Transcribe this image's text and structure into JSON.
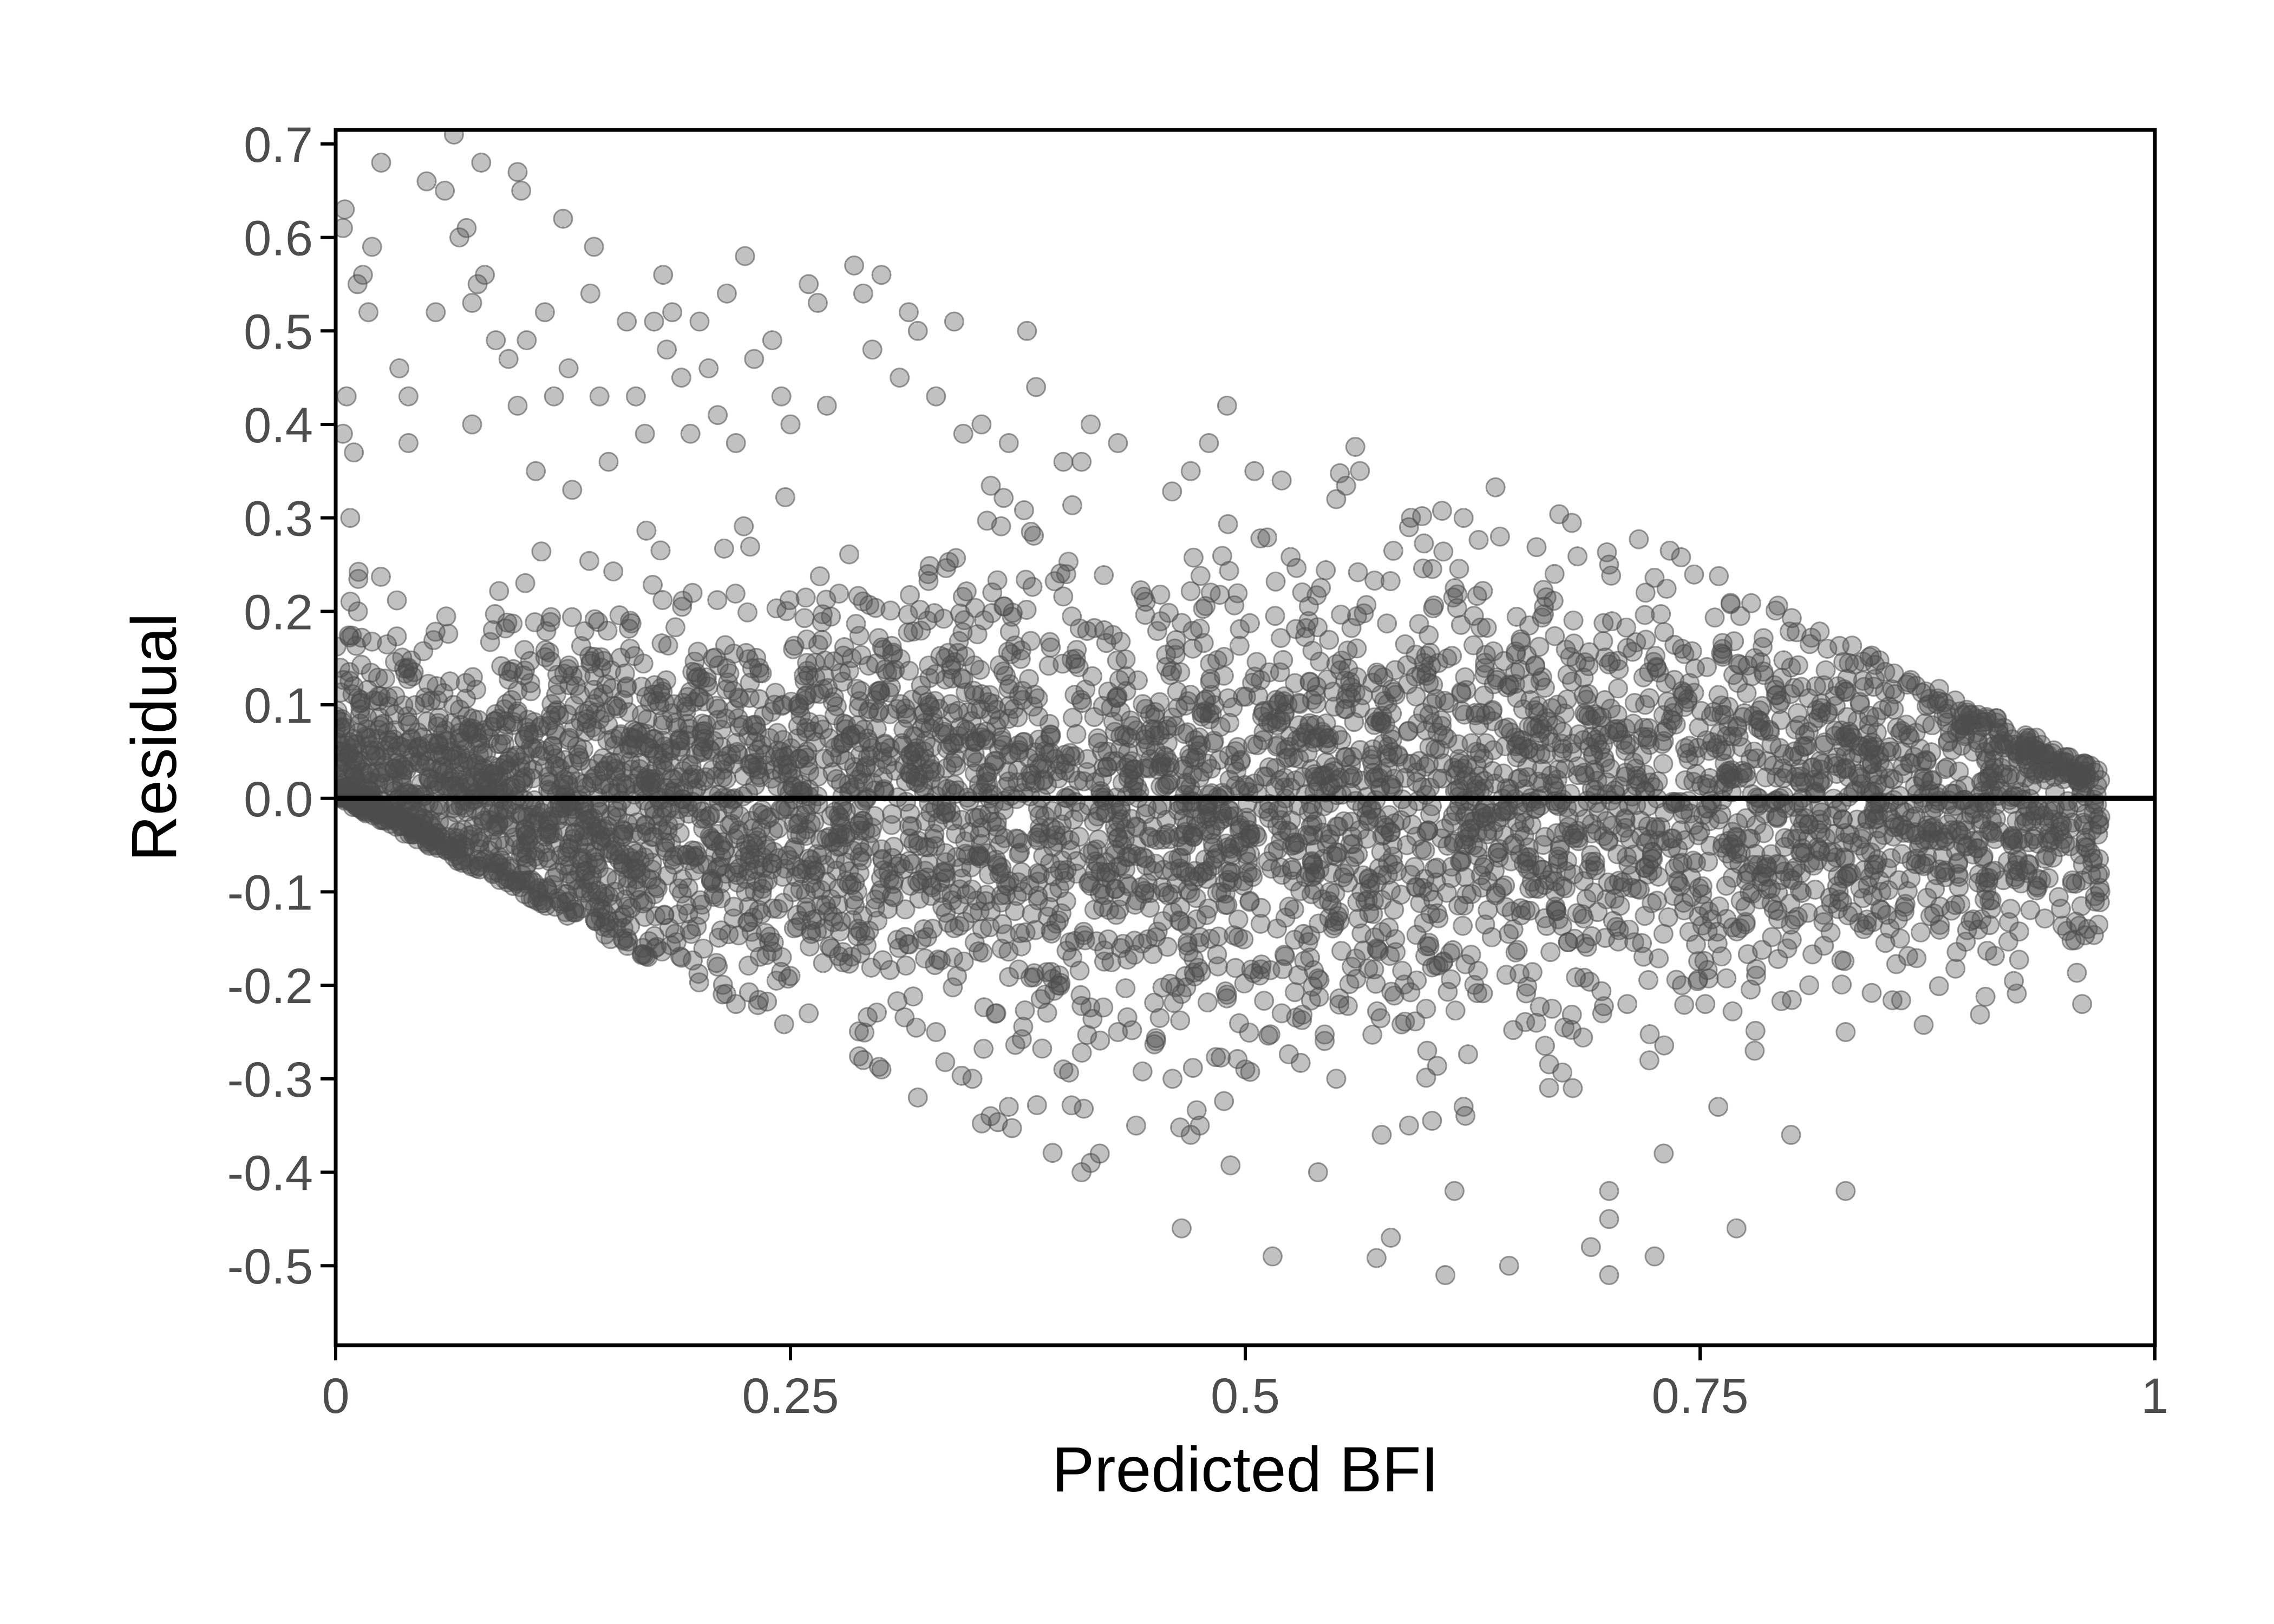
{
  "chart_data": {
    "type": "scatter",
    "title": "",
    "xlabel": "Predicted BFI",
    "ylabel": "Residual",
    "xlim": [
      0,
      1
    ],
    "ylim": [
      -0.585,
      0.715
    ],
    "x_ticks": [
      0,
      0.25,
      0.5,
      0.75,
      1
    ],
    "x_tick_labels": [
      "0",
      "0.25",
      "0.5",
      "0.75",
      "1"
    ],
    "y_ticks": [
      0.7,
      0.6,
      0.5,
      0.4,
      0.3,
      0.2,
      0.1,
      0.0,
      -0.1,
      -0.2,
      -0.3,
      -0.4,
      -0.5
    ],
    "y_tick_labels": [
      "0.7",
      "0.6",
      "0.5",
      "0.4",
      "0.3",
      "0.2",
      "0.1",
      "0.0",
      "-0.1",
      "-0.2",
      "-0.3",
      "-0.4",
      "-0.5"
    ],
    "grid": false,
    "legend": "none",
    "reference_line": {
      "y": 0,
      "color": "#000000"
    },
    "point_color": "#4d4d4d",
    "point_opacity": 0.35,
    "series": [
      {
        "points": [
          [
            0.005,
            0.63
          ],
          [
            0.004,
            0.61
          ],
          [
            0.006,
            0.43
          ],
          [
            0.004,
            0.39
          ],
          [
            0.01,
            0.37
          ],
          [
            0.008,
            0.3
          ],
          [
            0.012,
            0.55
          ],
          [
            0.015,
            0.56
          ],
          [
            0.02,
            0.59
          ],
          [
            0.018,
            0.52
          ],
          [
            0.025,
            0.68
          ],
          [
            0.035,
            0.46
          ],
          [
            0.04,
            0.43
          ],
          [
            0.04,
            0.38
          ],
          [
            0.05,
            0.66
          ],
          [
            0.055,
            0.52
          ],
          [
            0.06,
            0.65
          ],
          [
            0.065,
            0.71
          ],
          [
            0.068,
            0.6
          ],
          [
            0.072,
            0.61
          ],
          [
            0.075,
            0.53
          ],
          [
            0.078,
            0.55
          ],
          [
            0.08,
            0.68
          ],
          [
            0.082,
            0.56
          ],
          [
            0.075,
            0.4
          ],
          [
            0.088,
            0.49
          ],
          [
            0.095,
            0.47
          ],
          [
            0.1,
            0.67
          ],
          [
            0.102,
            0.65
          ],
          [
            0.1,
            0.42
          ],
          [
            0.105,
            0.49
          ],
          [
            0.11,
            0.35
          ],
          [
            0.115,
            0.52
          ],
          [
            0.12,
            0.43
          ],
          [
            0.125,
            0.62
          ],
          [
            0.128,
            0.46
          ],
          [
            0.13,
            0.33
          ],
          [
            0.14,
            0.54
          ],
          [
            0.142,
            0.59
          ],
          [
            0.145,
            0.43
          ],
          [
            0.15,
            0.36
          ],
          [
            0.16,
            0.51
          ],
          [
            0.165,
            0.43
          ],
          [
            0.17,
            0.39
          ],
          [
            0.175,
            0.51
          ],
          [
            0.18,
            0.56
          ],
          [
            0.182,
            0.48
          ],
          [
            0.185,
            0.52
          ],
          [
            0.19,
            0.45
          ],
          [
            0.195,
            0.39
          ],
          [
            0.2,
            0.51
          ],
          [
            0.205,
            0.46
          ],
          [
            0.21,
            0.41
          ],
          [
            0.215,
            0.54
          ],
          [
            0.22,
            0.38
          ],
          [
            0.225,
            0.58
          ],
          [
            0.23,
            0.47
          ],
          [
            0.24,
            0.49
          ],
          [
            0.245,
            0.43
          ],
          [
            0.25,
            0.4
          ],
          [
            0.26,
            0.55
          ],
          [
            0.265,
            0.53
          ],
          [
            0.27,
            0.42
          ],
          [
            0.285,
            0.57
          ],
          [
            0.29,
            0.54
          ],
          [
            0.295,
            0.48
          ],
          [
            0.3,
            0.56
          ],
          [
            0.31,
            0.45
          ],
          [
            0.315,
            0.52
          ],
          [
            0.32,
            0.5
          ],
          [
            0.33,
            0.43
          ],
          [
            0.34,
            0.51
          ],
          [
            0.345,
            0.39
          ],
          [
            0.355,
            0.4
          ],
          [
            0.37,
            0.38
          ],
          [
            0.38,
            0.5
          ],
          [
            0.385,
            0.44
          ],
          [
            0.4,
            0.36
          ],
          [
            0.41,
            0.36
          ],
          [
            0.415,
            0.4
          ],
          [
            0.43,
            0.38
          ],
          [
            0.47,
            0.35
          ],
          [
            0.48,
            0.38
          ],
          [
            0.49,
            0.42
          ],
          [
            0.505,
            0.35
          ],
          [
            0.52,
            0.34
          ],
          [
            0.55,
            0.32
          ],
          [
            0.59,
            0.29
          ],
          [
            0.62,
            0.3
          ],
          [
            0.64,
            0.28
          ],
          [
            0.67,
            0.24
          ],
          [
            0.7,
            0.25
          ],
          [
            0.72,
            0.22
          ],
          [
            0.74,
            0.16
          ],
          [
            0.78,
            0.15
          ],
          [
            0.8,
            0.14
          ],
          [
            0.82,
            0.09
          ],
          [
            0.86,
            0.07
          ],
          [
            0.9,
            0.05
          ],
          [
            0.92,
            0.04
          ],
          [
            0.94,
            0.02
          ],
          [
            0.96,
            0.01
          ],
          [
            0.97,
            -0.02
          ],
          [
            0.97,
            -0.1
          ],
          [
            0.96,
            -0.22
          ],
          [
            0.93,
            -0.08
          ],
          [
            0.9,
            -0.06
          ],
          [
            0.86,
            -0.15
          ],
          [
            0.84,
            -0.14
          ],
          [
            0.83,
            -0.25
          ],
          [
            0.83,
            -0.42
          ],
          [
            0.81,
            -0.2
          ],
          [
            0.8,
            -0.36
          ],
          [
            0.78,
            -0.27
          ],
          [
            0.77,
            -0.46
          ],
          [
            0.76,
            -0.33
          ],
          [
            0.74,
            -0.2
          ],
          [
            0.73,
            -0.38
          ],
          [
            0.725,
            -0.49
          ],
          [
            0.71,
            -0.22
          ],
          [
            0.7,
            -0.42
          ],
          [
            0.7,
            -0.45
          ],
          [
            0.7,
            -0.51
          ],
          [
            0.69,
            -0.48
          ],
          [
            0.68,
            -0.31
          ],
          [
            0.66,
            -0.24
          ],
          [
            0.645,
            -0.5
          ],
          [
            0.62,
            -0.33
          ],
          [
            0.615,
            -0.42
          ],
          [
            0.61,
            -0.51
          ],
          [
            0.6,
            -0.27
          ],
          [
            0.59,
            -0.35
          ],
          [
            0.58,
            -0.47
          ],
          [
            0.575,
            -0.36
          ],
          [
            0.55,
            -0.3
          ],
          [
            0.54,
            -0.4
          ],
          [
            0.52,
            -0.23
          ],
          [
            0.515,
            -0.49
          ],
          [
            0.5,
            -0.29
          ],
          [
            0.49,
            -0.21
          ],
          [
            0.475,
            -0.35
          ],
          [
            0.47,
            -0.36
          ],
          [
            0.465,
            -0.46
          ],
          [
            0.46,
            -0.3
          ],
          [
            0.44,
            -0.35
          ],
          [
            0.43,
            -0.25
          ],
          [
            0.42,
            -0.38
          ],
          [
            0.415,
            -0.39
          ],
          [
            0.41,
            -0.4
          ],
          [
            0.4,
            -0.29
          ],
          [
            0.39,
            -0.21
          ],
          [
            0.37,
            -0.33
          ],
          [
            0.36,
            -0.34
          ],
          [
            0.35,
            -0.3
          ],
          [
            0.33,
            -0.25
          ],
          [
            0.32,
            -0.32
          ],
          [
            0.3,
            -0.29
          ],
          [
            0.29,
            -0.28
          ],
          [
            0.26,
            -0.23
          ],
          [
            0.25,
            -0.19
          ],
          [
            0.22,
            -0.22
          ],
          [
            0.21,
            -0.18
          ]
        ]
      }
    ]
  }
}
